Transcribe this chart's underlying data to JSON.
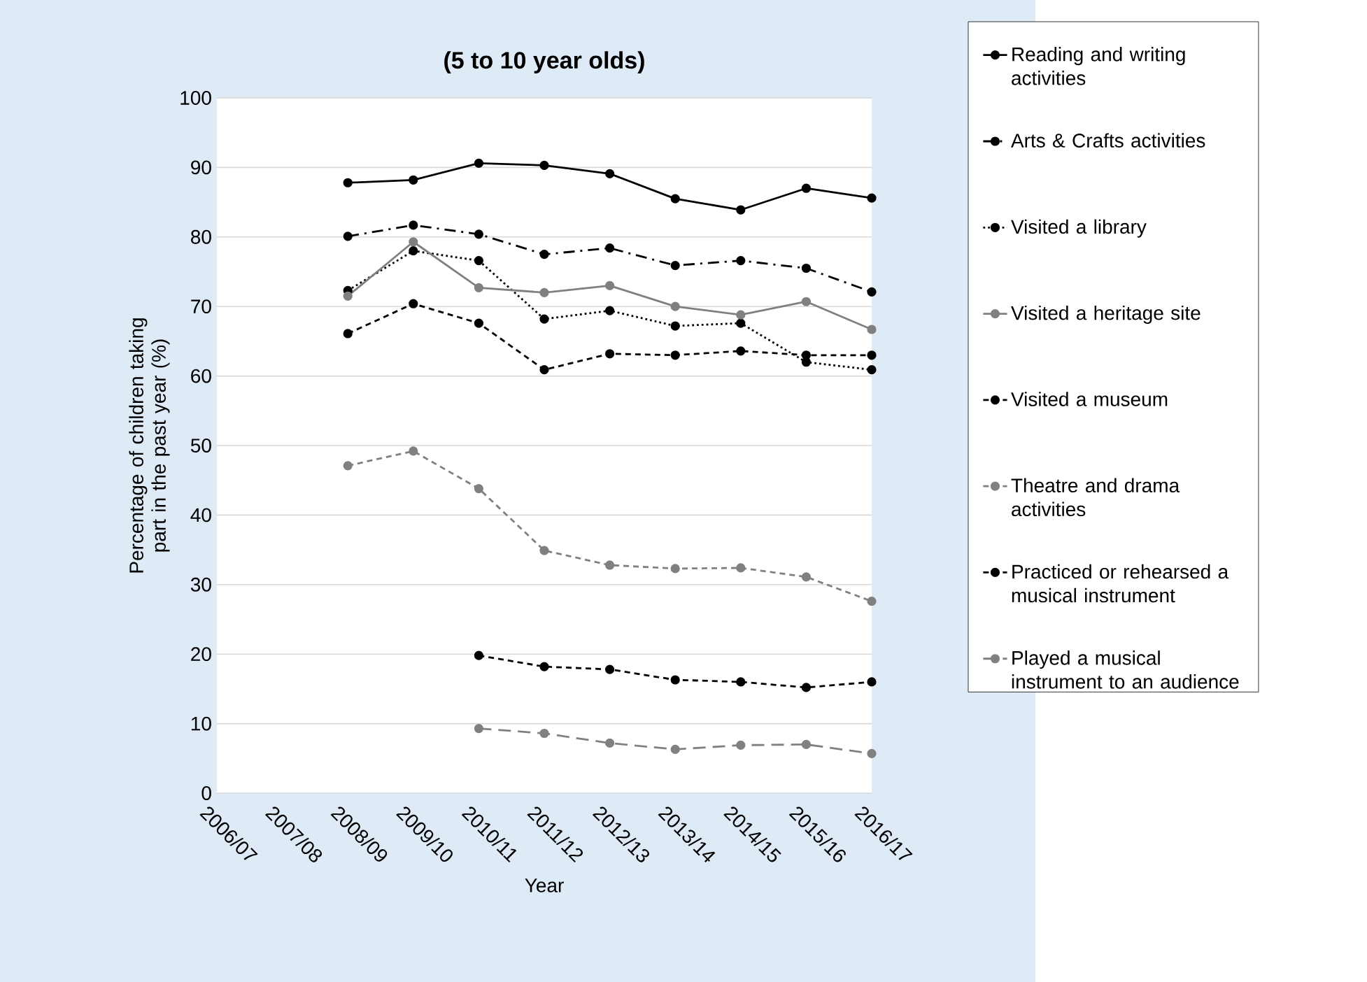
{
  "chart_data": {
    "type": "line",
    "title": "(5 to 10 year olds)",
    "xlabel": "Year",
    "ylabel": "Percentage of children taking part in the past year (%)",
    "categories": [
      "2006/07",
      "2007/08",
      "2008/09",
      "2009/10",
      "2010/11",
      "2011/12",
      "2012/13",
      "2013/14",
      "2014/15",
      "2015/16",
      "2016/17"
    ],
    "series": [
      {
        "name": "Reading and writing activities",
        "color": "#000000",
        "line_style": "solid",
        "values": [
          null,
          null,
          87.8,
          88.2,
          90.6,
          90.3,
          89.1,
          85.5,
          83.9,
          87.0,
          85.6
        ]
      },
      {
        "name": "Arts & Crafts activities",
        "color": "#000000",
        "line_style": "dashdot",
        "values": [
          null,
          null,
          80.1,
          81.7,
          80.4,
          77.5,
          78.4,
          75.9,
          76.6,
          75.5,
          72.1
        ]
      },
      {
        "name": "Visited a library",
        "color": "#000000",
        "line_style": "dotted",
        "values": [
          null,
          null,
          72.3,
          78.0,
          76.6,
          68.2,
          69.4,
          67.2,
          67.6,
          62.0,
          60.9
        ]
      },
      {
        "name": "Visited a heritage site",
        "color": "#808080",
        "line_style": "solid",
        "values": [
          null,
          null,
          71.5,
          79.3,
          72.7,
          72.0,
          73.0,
          70.0,
          68.8,
          70.7,
          66.7
        ]
      },
      {
        "name": "Visited a museum",
        "color": "#000000",
        "line_style": "dashed",
        "values": [
          null,
          null,
          66.1,
          70.4,
          67.6,
          60.9,
          63.2,
          63.0,
          63.6,
          63.0,
          63.0
        ]
      },
      {
        "name": "Theatre and drama activities",
        "color": "#808080",
        "line_style": "dashed",
        "values": [
          null,
          null,
          47.1,
          49.2,
          43.8,
          34.9,
          32.8,
          32.3,
          32.4,
          31.1,
          27.6
        ]
      },
      {
        "name": "Practiced or rehearsed a musical instrument",
        "color": "#000000",
        "line_style": "dashed",
        "values": [
          null,
          null,
          null,
          null,
          19.8,
          18.2,
          17.8,
          16.3,
          16.0,
          15.2,
          16.0
        ]
      },
      {
        "name": "Played a musical instrument to an audience",
        "color": "#808080",
        "line_style": "longdash",
        "values": [
          null,
          null,
          null,
          null,
          9.3,
          8.6,
          7.2,
          6.3,
          6.9,
          7.0,
          5.7
        ]
      }
    ],
    "ylim": [
      0,
      100
    ],
    "yticks": [
      0,
      10,
      20,
      30,
      40,
      50,
      60,
      70,
      80,
      90,
      100
    ],
    "grid": "y",
    "legend": "right",
    "marker": "circle"
  }
}
